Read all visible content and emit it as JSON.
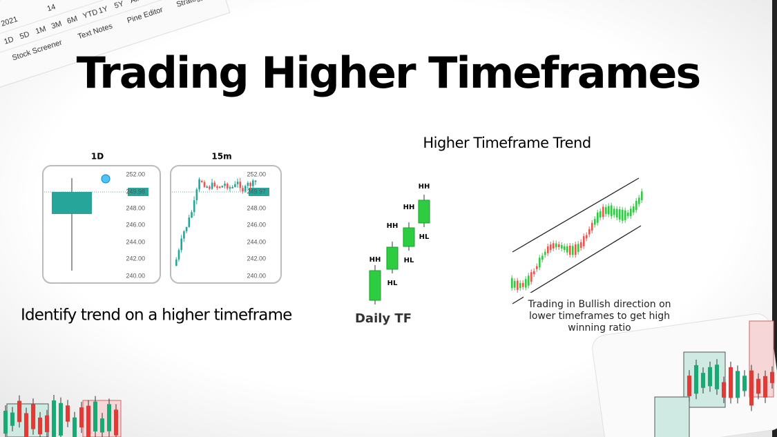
{
  "toolbar": {
    "year": "2021",
    "day": "14",
    "ranges": [
      "1D",
      "5D",
      "1M",
      "3M",
      "6M",
      "YTD",
      "1Y",
      "5Y",
      "All"
    ],
    "tabs": [
      "Stock Screener",
      "Text Notes",
      "Pine Editor",
      "Strategy"
    ]
  },
  "title": "Trading Higher Timeframes",
  "left": {
    "charts": [
      {
        "label": "1D",
        "prices": [
          "252.00",
          "249.98",
          "248.00",
          "246.00",
          "244.00",
          "242.00",
          "240.00"
        ]
      },
      {
        "label": "15m",
        "prices": [
          "252.00",
          "249.97",
          "248.00",
          "246.00",
          "244.00",
          "242.00",
          "240.00"
        ]
      }
    ],
    "caption": "Identify trend on a higher timeframe"
  },
  "middle": {
    "heading": "Higher Timeframe Trend",
    "candles": [
      {
        "top": "HH"
      },
      {
        "top": "HH",
        "bottom": "HL"
      },
      {
        "top": "HH",
        "bottom": "HL"
      },
      {
        "top": "HH",
        "bottom": "HL"
      }
    ],
    "caption": "Daily TF"
  },
  "right": {
    "caption": [
      "Trading in Bullish direction on",
      "lower timeframes to get high",
      "winning ratio"
    ]
  }
}
